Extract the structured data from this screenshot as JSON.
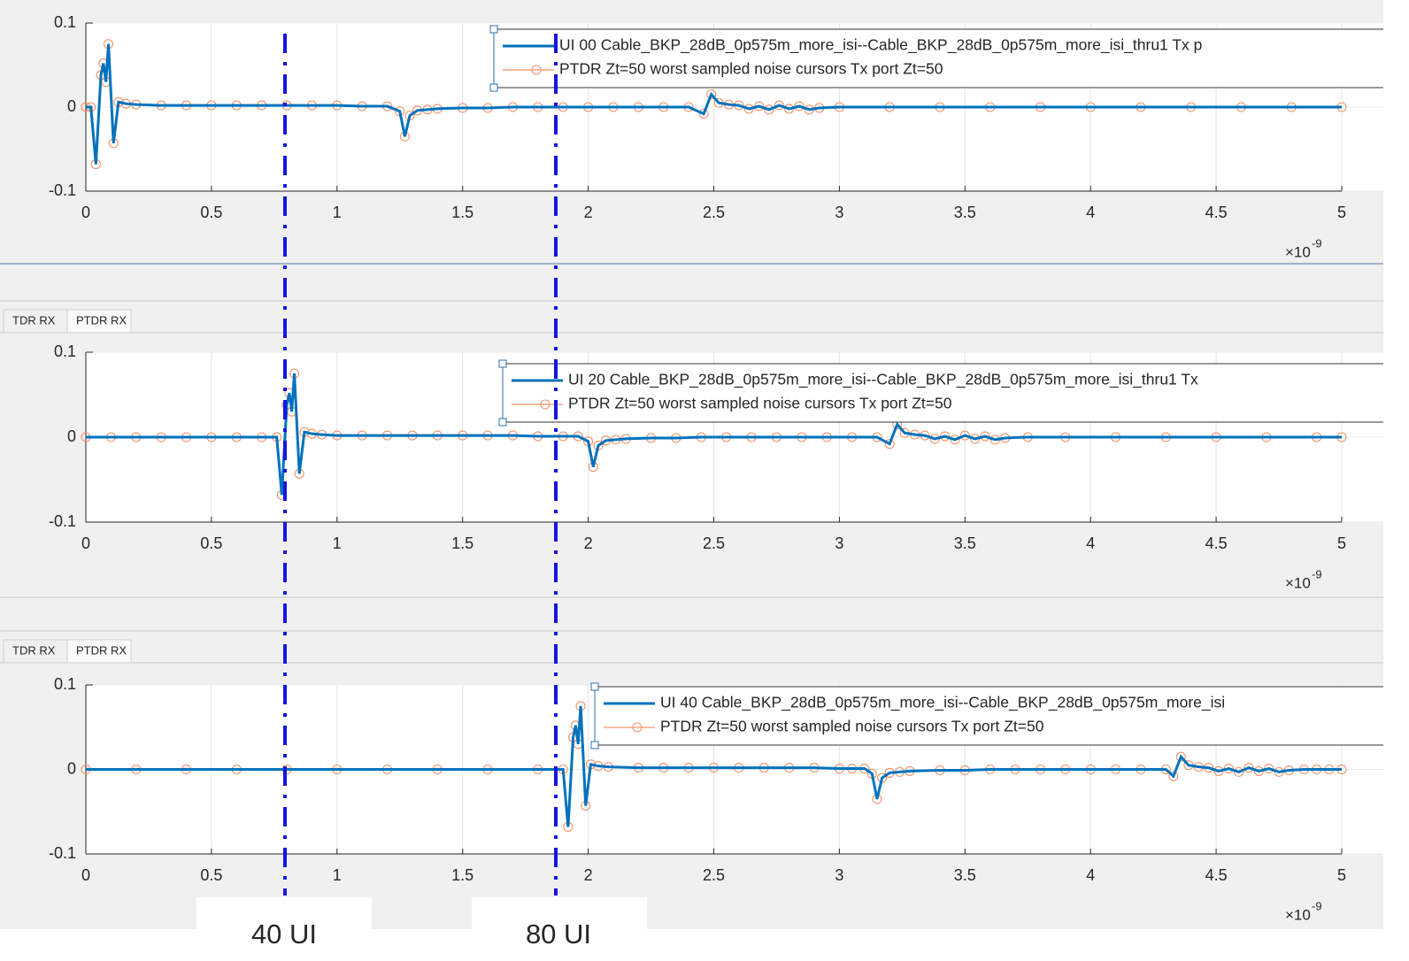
{
  "chart_data": [
    {
      "type": "line",
      "x": [
        0,
        0.02,
        0.04,
        0.06,
        0.07,
        0.08,
        0.09,
        0.11,
        0.13,
        0.16,
        0.2,
        0.3,
        0.4,
        0.5,
        0.6,
        0.7,
        0.8,
        0.9,
        1,
        1.1,
        1.2,
        1.25,
        1.27,
        1.29,
        1.32,
        1.36,
        1.4,
        1.5,
        1.6,
        1.7,
        1.8,
        1.9,
        2,
        2.1,
        2.2,
        2.3,
        2.4,
        2.46,
        2.49,
        2.52,
        2.56,
        2.6,
        2.64,
        2.68,
        2.72,
        2.76,
        2.8,
        2.84,
        2.88,
        2.92,
        3,
        3.2,
        3.4,
        3.6,
        3.8,
        4,
        4.2,
        4.4,
        4.6,
        4.8,
        5
      ],
      "series": [
        {
          "name": "UI 00 Cable_BKP_28dB_0p575m_more_isi--Cable_BKP_28dB_0p575m_more_isi_thru1 Tx p",
          "color": "#0072bd",
          "values": [
            0,
            0,
            -0.068,
            0.038,
            0.052,
            0.03,
            0.075,
            -0.043,
            0.006,
            0.004,
            0.003,
            0.002,
            0.002,
            0.002,
            0.002,
            0.002,
            0.002,
            0.002,
            0.002,
            0.001,
            0.001,
            -0.005,
            -0.035,
            -0.01,
            -0.004,
            -0.003,
            -0.002,
            -0.001,
            -0.001,
            0,
            0,
            0,
            0,
            0,
            0,
            0,
            0,
            -0.008,
            0.015,
            0.005,
            0.003,
            0.002,
            -0.002,
            0.001,
            -0.003,
            0.002,
            -0.002,
            0.001,
            -0.003,
            -0.001,
            0,
            0,
            0,
            0,
            0,
            0,
            0,
            0,
            0,
            0,
            0
          ]
        },
        {
          "name": "PTDR Zt=50 worst sampled noise cursors Tx port Zt=50",
          "color": "#f0926a",
          "marker": "circle",
          "values": [
            0,
            0,
            -0.068,
            0.038,
            0.052,
            0.03,
            0.075,
            -0.043,
            0.006,
            0.004,
            0.003,
            0.002,
            0.002,
            0.002,
            0.002,
            0.002,
            0.002,
            0.002,
            0.002,
            0.001,
            0.001,
            -0.005,
            -0.035,
            -0.01,
            -0.004,
            -0.003,
            -0.002,
            -0.001,
            -0.001,
            0,
            0,
            0,
            0,
            0,
            0,
            0,
            0,
            -0.008,
            0.015,
            0.005,
            0.003,
            0.002,
            -0.002,
            0.001,
            -0.003,
            0.002,
            -0.002,
            0.001,
            -0.003,
            -0.001,
            0,
            0,
            0,
            0,
            0,
            0,
            0,
            0,
            0,
            0,
            0
          ]
        }
      ],
      "xlim": [
        0,
        5
      ],
      "xticks": [
        0,
        0.5,
        1,
        1.5,
        2,
        2.5,
        3,
        3.5,
        4,
        4.5,
        5
      ],
      "ylim": [
        -0.1,
        0.1
      ],
      "yticks": [
        -0.1,
        0,
        0.1
      ],
      "x_exponent": {
        "base": "×10",
        "power": "-9"
      },
      "grid": true,
      "legend": "northeast"
    },
    {
      "type": "line",
      "tabs": [
        "TDR RX",
        "PTDR RX"
      ],
      "x": [
        0,
        0.1,
        0.2,
        0.3,
        0.4,
        0.5,
        0.6,
        0.7,
        0.76,
        0.78,
        0.8,
        0.81,
        0.82,
        0.83,
        0.85,
        0.87,
        0.9,
        0.94,
        1,
        1.1,
        1.2,
        1.3,
        1.4,
        1.5,
        1.6,
        1.7,
        1.8,
        1.9,
        1.96,
        2,
        2.02,
        2.04,
        2.07,
        2.11,
        2.15,
        2.25,
        2.35,
        2.45,
        2.55,
        2.65,
        2.75,
        2.85,
        2.95,
        3.05,
        3.15,
        3.2,
        3.23,
        3.26,
        3.3,
        3.34,
        3.38,
        3.42,
        3.46,
        3.5,
        3.54,
        3.58,
        3.62,
        3.66,
        3.75,
        3.9,
        4.1,
        4.3,
        4.5,
        4.7,
        4.9,
        5
      ],
      "series": [
        {
          "name": "UI 20 Cable_BKP_28dB_0p575m_more_isi--Cable_BKP_28dB_0p575m_more_isi_thru1 Tx",
          "color": "#0072bd",
          "values": [
            0,
            0,
            0,
            0,
            0,
            0,
            0,
            0,
            0,
            -0.068,
            0.038,
            0.052,
            0.03,
            0.075,
            -0.043,
            0.006,
            0.004,
            0.003,
            0.002,
            0.002,
            0.002,
            0.002,
            0.002,
            0.002,
            0.002,
            0.002,
            0.001,
            0.001,
            0.001,
            -0.005,
            -0.035,
            -0.01,
            -0.004,
            -0.003,
            -0.002,
            -0.001,
            -0.001,
            0,
            0,
            0,
            0,
            0,
            0,
            0,
            0,
            -0.008,
            0.015,
            0.005,
            0.003,
            0.002,
            -0.002,
            0.001,
            -0.003,
            0.002,
            -0.002,
            0.001,
            -0.003,
            -0.001,
            0,
            0,
            0,
            0,
            0,
            0,
            0,
            0
          ]
        },
        {
          "name": "PTDR Zt=50 worst sampled noise cursors Tx port Zt=50",
          "color": "#f0926a",
          "marker": "circle",
          "values": [
            0,
            0,
            0,
            0,
            0,
            0,
            0,
            0,
            0,
            -0.068,
            0.038,
            0.052,
            0.03,
            0.075,
            -0.043,
            0.006,
            0.004,
            0.003,
            0.002,
            0.002,
            0.002,
            0.002,
            0.002,
            0.002,
            0.002,
            0.002,
            0.001,
            0.001,
            0.001,
            -0.005,
            -0.035,
            -0.01,
            -0.004,
            -0.003,
            -0.002,
            -0.001,
            -0.001,
            0,
            0,
            0,
            0,
            0,
            0,
            0,
            0,
            -0.008,
            0.015,
            0.005,
            0.003,
            0.002,
            -0.002,
            0.001,
            -0.003,
            0.002,
            -0.002,
            0.001,
            -0.003,
            -0.001,
            0,
            0,
            0,
            0,
            0,
            0,
            0,
            0
          ]
        }
      ],
      "xlim": [
        0,
        5
      ],
      "xticks": [
        0,
        0.5,
        1,
        1.5,
        2,
        2.5,
        3,
        3.5,
        4,
        4.5,
        5
      ],
      "ylim": [
        -0.1,
        0.1
      ],
      "yticks": [
        -0.1,
        0,
        0.1
      ],
      "x_exponent": {
        "base": "×10",
        "power": "-9"
      },
      "grid": true,
      "legend": "northeast"
    },
    {
      "type": "line",
      "tabs": [
        "TDR RX",
        "PTDR RX"
      ],
      "x": [
        0,
        0.2,
        0.4,
        0.6,
        0.8,
        1,
        1.2,
        1.4,
        1.6,
        1.8,
        1.9,
        1.92,
        1.94,
        1.95,
        1.96,
        1.97,
        1.99,
        2.01,
        2.04,
        2.08,
        2.2,
        2.3,
        2.4,
        2.5,
        2.6,
        2.7,
        2.8,
        2.9,
        3,
        3.05,
        3.1,
        3.13,
        3.15,
        3.17,
        3.2,
        3.24,
        3.28,
        3.4,
        3.5,
        3.6,
        3.7,
        3.8,
        3.9,
        4,
        4.1,
        4.2,
        4.3,
        4.33,
        4.36,
        4.39,
        4.43,
        4.47,
        4.51,
        4.55,
        4.59,
        4.63,
        4.67,
        4.71,
        4.75,
        4.79,
        4.85,
        4.9,
        4.95,
        5
      ],
      "series": [
        {
          "name": "UI 40 Cable_BKP_28dB_0p575m_more_isi--Cable_BKP_28dB_0p575m_more_isi",
          "color": "#0072bd",
          "values": [
            0,
            0,
            0,
            0,
            0,
            0,
            0,
            0,
            0,
            0,
            0,
            -0.068,
            0.038,
            0.052,
            0.03,
            0.075,
            -0.043,
            0.006,
            0.004,
            0.003,
            0.002,
            0.002,
            0.002,
            0.002,
            0.002,
            0.002,
            0.002,
            0.002,
            0.001,
            0.001,
            0.001,
            -0.005,
            -0.035,
            -0.01,
            -0.004,
            -0.003,
            -0.002,
            -0.001,
            -0.001,
            0,
            0,
            0,
            0,
            0,
            0,
            0,
            0,
            -0.008,
            0.015,
            0.005,
            0.003,
            0.002,
            -0.002,
            0.001,
            -0.003,
            0.002,
            -0.002,
            0.001,
            -0.003,
            -0.001,
            0,
            0,
            0,
            0
          ]
        },
        {
          "name": "PTDR Zt=50 worst sampled noise cursors Tx port Zt=50",
          "color": "#f0926a",
          "marker": "circle",
          "values": [
            0,
            0,
            0,
            0,
            0,
            0,
            0,
            0,
            0,
            0,
            0,
            -0.068,
            0.038,
            0.052,
            0.03,
            0.075,
            -0.043,
            0.006,
            0.004,
            0.003,
            0.002,
            0.002,
            0.002,
            0.002,
            0.002,
            0.002,
            0.002,
            0.002,
            0.001,
            0.001,
            0.001,
            -0.005,
            -0.035,
            -0.01,
            -0.004,
            -0.003,
            -0.002,
            -0.001,
            -0.001,
            0,
            0,
            0,
            0,
            0,
            0,
            0,
            0,
            -0.008,
            0.015,
            0.005,
            0.003,
            0.002,
            -0.002,
            0.001,
            -0.003,
            0.002,
            -0.002,
            0.001,
            -0.003,
            -0.001,
            0,
            0,
            0,
            0
          ]
        }
      ],
      "xlim": [
        0,
        5
      ],
      "xticks": [
        0,
        0.5,
        1,
        1.5,
        2,
        2.5,
        3,
        3.5,
        4,
        4.5,
        5
      ],
      "ylim": [
        -0.1,
        0.1
      ],
      "yticks": [
        -0.1,
        0,
        0.1
      ],
      "x_exponent": {
        "base": "×10",
        "power": "-9"
      },
      "grid": true,
      "legend": "northeast"
    }
  ],
  "annotations": [
    "40 UI",
    "80 UI"
  ]
}
